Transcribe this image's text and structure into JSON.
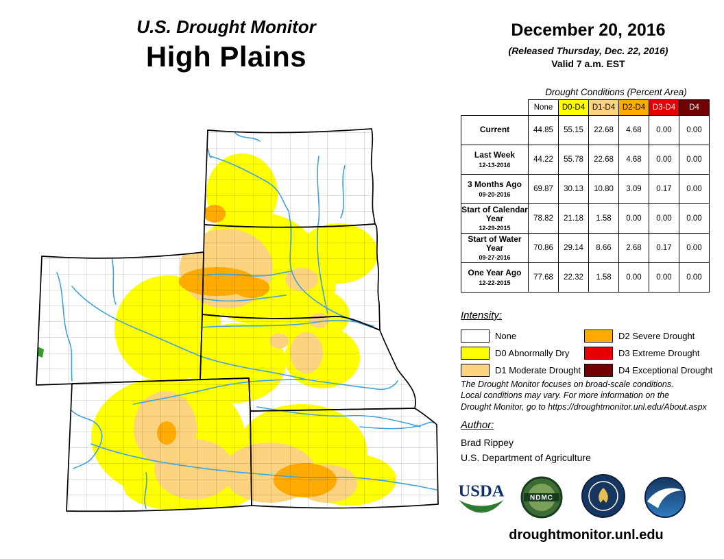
{
  "title": {
    "line1": "U.S. Drought Monitor",
    "line2": "High Plains"
  },
  "date_block": {
    "date": "December 20, 2016",
    "released": "(Released Thursday, Dec. 22, 2016)",
    "valid": "Valid 7 a.m. EST"
  },
  "table": {
    "caption": "Drought Conditions (Percent Area)",
    "columns": [
      "None",
      "D0-D4",
      "D1-D4",
      "D2-D4",
      "D3-D4",
      "D4"
    ],
    "header_bg": [
      "#FFFFFF",
      "#FFFF00",
      "#FCD37F",
      "#FFAA00",
      "#E60000",
      "#730000"
    ],
    "header_fg": [
      "#000000",
      "#000000",
      "#000000",
      "#000000",
      "#FFFFFF",
      "#FFFFFF"
    ],
    "rows": [
      {
        "label": "Current",
        "date": "",
        "values": [
          "44.85",
          "55.15",
          "22.68",
          "4.68",
          "0.00",
          "0.00"
        ]
      },
      {
        "label": "Last Week",
        "date": "12-13-2016",
        "values": [
          "44.22",
          "55.78",
          "22.68",
          "4.68",
          "0.00",
          "0.00"
        ]
      },
      {
        "label": "3 Months Ago",
        "date": "09-20-2016",
        "values": [
          "69.87",
          "30.13",
          "10.80",
          "3.09",
          "0.17",
          "0.00"
        ]
      },
      {
        "label": "Start of Calendar Year",
        "date": "12-29-2015",
        "values": [
          "78.82",
          "21.18",
          "1.58",
          "0.00",
          "0.00",
          "0.00"
        ]
      },
      {
        "label": "Start of Water Year",
        "date": "09-27-2016",
        "values": [
          "70.86",
          "29.14",
          "8.66",
          "2.68",
          "0.17",
          "0.00"
        ]
      },
      {
        "label": "One Year Ago",
        "date": "12-22-2015",
        "values": [
          "77.68",
          "22.32",
          "1.58",
          "0.00",
          "0.00",
          "0.00"
        ]
      }
    ]
  },
  "legend": {
    "title": "Intensity:",
    "items": [
      {
        "code": "none",
        "label": "None",
        "color": "#FFFFFF"
      },
      {
        "code": "d0",
        "label": "D0 Abnormally Dry",
        "color": "#FFFF00"
      },
      {
        "code": "d1",
        "label": "D1 Moderate Drought",
        "color": "#FCD37F"
      },
      {
        "code": "d2",
        "label": "D2 Severe Drought",
        "color": "#FFAA00"
      },
      {
        "code": "d3",
        "label": "D3 Extreme Drought",
        "color": "#E60000"
      },
      {
        "code": "d4",
        "label": "D4 Exceptional Drought",
        "color": "#730000"
      }
    ]
  },
  "disclaimer": {
    "lines": [
      "The Drought Monitor focuses on broad-scale conditions.",
      "Local conditions may vary. For more information on the",
      "Drought Monitor, go to https://droughtmonitor.unl.edu/About.aspx"
    ]
  },
  "author": {
    "heading": "Author:",
    "name": "Brad Rippey",
    "org": "U.S. Department of Agriculture"
  },
  "logos": {
    "usda": "USDA",
    "ndmc": "NDMC"
  },
  "footer": {
    "url": "droughtmonitor.unl.edu"
  },
  "map": {
    "region": "High Plains",
    "states": [
      "North Dakota",
      "South Dakota",
      "Wyoming",
      "Nebraska",
      "Colorado",
      "Kansas"
    ],
    "water_color": "#3FA0E0"
  }
}
